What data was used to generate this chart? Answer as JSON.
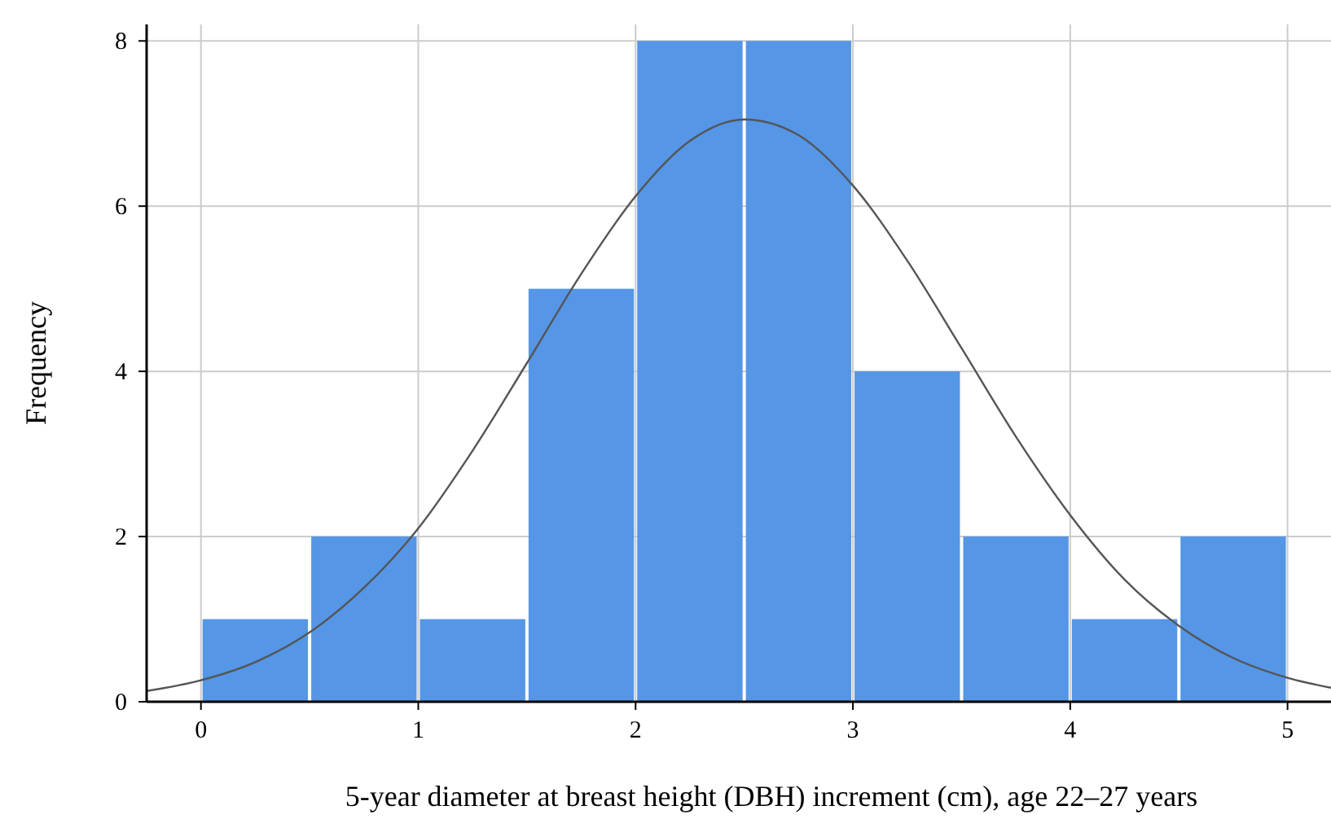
{
  "chart_data": {
    "type": "histogram",
    "xlabel": "5-year diameter at breast height (DBH) increment (cm), age 22–27 years",
    "ylabel": "Frequency",
    "bins": [
      0,
      0.5,
      1,
      1.5,
      2,
      2.5,
      3,
      3.5,
      4,
      4.5,
      5
    ],
    "values": [
      1,
      2,
      1,
      5,
      8,
      8,
      4,
      2,
      1,
      2
    ],
    "color": "#5596e6",
    "series": [
      {
        "type": "line",
        "color": "#555555",
        "x": [
          -0.25,
          0,
          0.25,
          0.5,
          0.75,
          1,
          1.25,
          1.5,
          1.75,
          2,
          2.25,
          2.5,
          2.75,
          3,
          3.25,
          3.5,
          3.75,
          4,
          4.25,
          4.5,
          4.75,
          5,
          5.2
        ],
        "values": [
          0.13,
          0.26,
          0.48,
          0.84,
          1.38,
          2.1,
          3.04,
          4.1,
          5.18,
          6.12,
          6.79,
          7.05,
          6.86,
          6.25,
          5.34,
          4.28,
          3.21,
          2.26,
          1.48,
          0.92,
          0.53,
          0.29,
          0.17
        ]
      }
    ],
    "xlim": [
      -0.25,
      5.2
    ],
    "ylim": [
      0,
      8.2
    ],
    "xticks": [
      0,
      1,
      2,
      3,
      4,
      5
    ],
    "yticks": [
      0,
      2,
      4,
      6,
      8
    ],
    "grid": true
  }
}
